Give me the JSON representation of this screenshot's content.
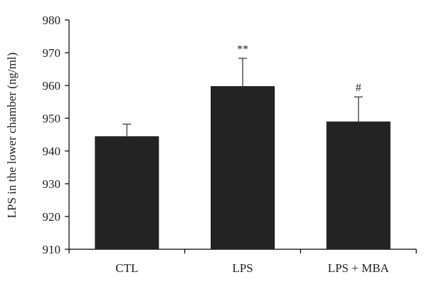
{
  "chart_data": {
    "type": "bar",
    "title": "",
    "xlabel": "",
    "ylabel": "LPS in the lower chamber (ng/ml)",
    "ylim": [
      910,
      980
    ],
    "yticks": [
      910,
      920,
      930,
      940,
      950,
      960,
      970,
      980
    ],
    "categories": [
      "CTL",
      "LPS",
      "LPS + MBA"
    ],
    "values": [
      944.5,
      959.8,
      949.0
    ],
    "errors": [
      3.7,
      8.5,
      7.5
    ],
    "annotations": [
      "",
      "**",
      "#"
    ],
    "grid": false,
    "bar_color": "#232323",
    "error_color": "#555555"
  }
}
